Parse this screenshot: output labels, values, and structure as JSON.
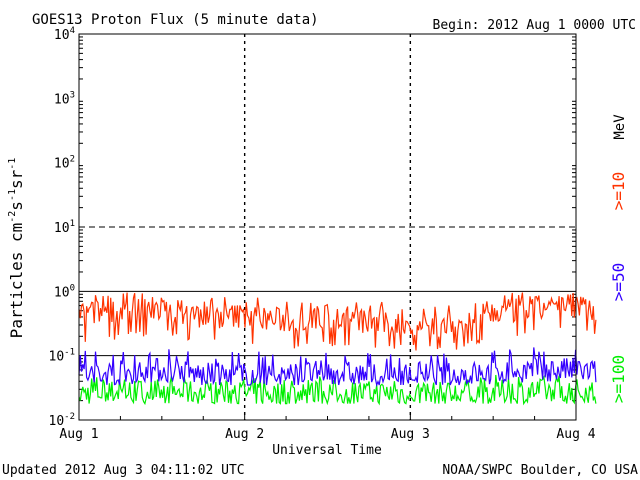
{
  "header": {
    "title": "GOES13 Proton Flux (5 minute data)",
    "begin": "Begin: 2012 Aug 1 0000 UTC"
  },
  "footer": {
    "updated": "Updated 2012 Aug  3 04:11:02 UTC",
    "credit": "NOAA/SWPC Boulder, CO USA"
  },
  "chart_data": {
    "type": "line",
    "title": "GOES13 Proton Flux (5 minute data)",
    "xlabel": "Universal Time",
    "ylabel": "Particles cm-2s-1sr-1",
    "yscale": "log",
    "xlim": [
      0,
      3
    ],
    "ylim": [
      0.01,
      10000
    ],
    "x_ticks": [
      "Aug 1",
      "Aug 2",
      "Aug 3",
      "Aug 4"
    ],
    "y_ticks": [
      {
        "base": "10",
        "exp": "4"
      },
      {
        "base": "10",
        "exp": "3"
      },
      {
        "base": "10",
        "exp": "2"
      },
      {
        "base": "10",
        "exp": "1"
      },
      {
        "base": "10",
        "exp": "0"
      },
      {
        "base": "10",
        "exp": "-1"
      },
      {
        "base": "10",
        "exp": "-2"
      }
    ],
    "ylabel_parts": {
      "text": "Particles cm",
      "e1": "-2",
      "s": "s",
      "e2": "-1",
      "sr": "sr",
      "e3": "-1"
    },
    "thresholds": [
      {
        "value": 10,
        "style": "dashed"
      },
      {
        "value": 1,
        "style": "solid"
      },
      {
        "value": 0.1,
        "style": "solid"
      }
    ],
    "unit_label": "MeV",
    "series": [
      {
        "name": ">=10",
        "color": "#ff3300",
        "x": [
          0.0,
          0.25,
          0.5,
          0.75,
          1.0,
          1.25,
          1.5,
          1.75,
          2.0,
          2.25,
          2.5,
          2.75,
          3.0,
          3.12
        ],
        "values": [
          0.45,
          0.5,
          0.55,
          0.4,
          0.42,
          0.35,
          0.4,
          0.33,
          0.3,
          0.28,
          0.45,
          0.55,
          0.6,
          0.5
        ],
        "low": [
          0.15,
          0.18,
          0.2,
          0.15,
          0.15,
          0.12,
          0.14,
          0.12,
          0.12,
          0.12,
          0.15,
          0.2,
          0.22,
          0.2
        ],
        "high": [
          0.9,
          1.0,
          0.95,
          0.8,
          0.85,
          0.75,
          0.8,
          0.7,
          0.65,
          0.7,
          0.9,
          1.0,
          1.0,
          1.0
        ]
      },
      {
        "name": ">=50",
        "color": "#3300ff",
        "x": [
          0.0,
          0.25,
          0.5,
          0.75,
          1.0,
          1.25,
          1.5,
          1.75,
          2.0,
          2.25,
          2.5,
          2.75,
          3.0,
          3.12
        ],
        "values": [
          0.05,
          0.055,
          0.06,
          0.05,
          0.05,
          0.05,
          0.055,
          0.05,
          0.05,
          0.05,
          0.055,
          0.06,
          0.06,
          0.055
        ],
        "low": [
          0.035,
          0.035,
          0.04,
          0.035,
          0.035,
          0.035,
          0.035,
          0.035,
          0.035,
          0.035,
          0.035,
          0.04,
          0.04,
          0.035
        ],
        "high": [
          0.13,
          0.12,
          0.14,
          0.11,
          0.12,
          0.11,
          0.12,
          0.11,
          0.1,
          0.11,
          0.12,
          0.14,
          0.13,
          0.15
        ]
      },
      {
        "name": ">=100",
        "color": "#00ee00",
        "x": [
          0.0,
          0.25,
          0.5,
          0.75,
          1.0,
          1.25,
          1.5,
          1.75,
          2.0,
          2.25,
          2.5,
          2.75,
          3.0,
          3.12
        ],
        "values": [
          0.026,
          0.027,
          0.028,
          0.026,
          0.026,
          0.025,
          0.027,
          0.026,
          0.026,
          0.025,
          0.027,
          0.028,
          0.028,
          0.027
        ],
        "low": [
          0.018,
          0.018,
          0.018,
          0.018,
          0.018,
          0.018,
          0.018,
          0.018,
          0.018,
          0.018,
          0.018,
          0.018,
          0.018,
          0.018
        ],
        "high": [
          0.045,
          0.05,
          0.05,
          0.045,
          0.045,
          0.045,
          0.05,
          0.045,
          0.045,
          0.045,
          0.05,
          0.05,
          0.05,
          0.05
        ]
      }
    ]
  }
}
